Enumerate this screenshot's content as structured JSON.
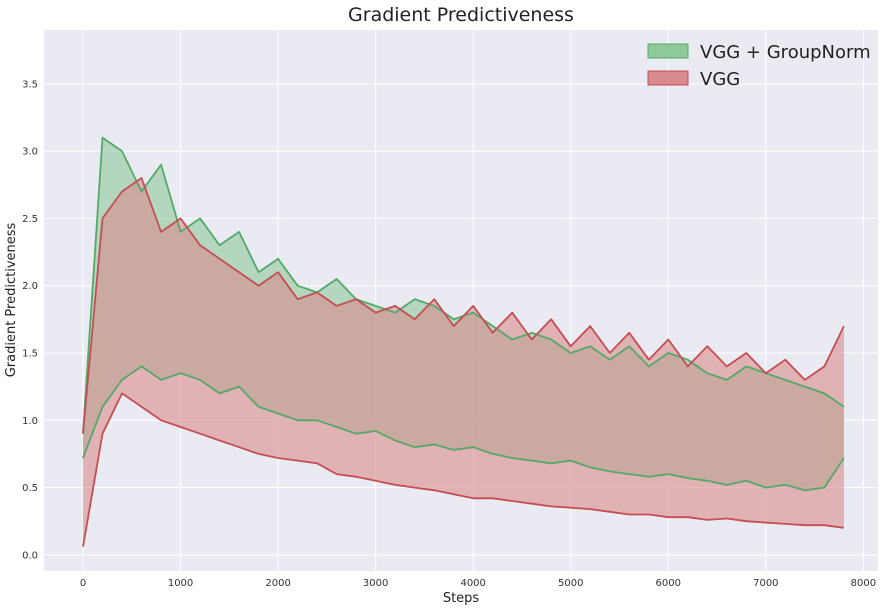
{
  "chart_data": {
    "type": "area",
    "title": "Gradient Predictiveness",
    "xlabel": "Steps",
    "ylabel": "Gradient Predictiveness",
    "xlim": [
      -400,
      8150
    ],
    "ylim": [
      -0.12,
      3.9
    ],
    "xticks": [
      0,
      1000,
      2000,
      3000,
      4000,
      5000,
      6000,
      7000,
      8000
    ],
    "yticks": [
      0.0,
      0.5,
      1.0,
      1.5,
      2.0,
      2.5,
      3.0,
      3.5
    ],
    "grid": true,
    "legend_position": "top-right",
    "x_start": 0,
    "x_step": 200,
    "series": [
      {
        "name": "VGG + GroupNorm",
        "color": "#55a868",
        "fill_color": "#8fc89b",
        "upper": [
          0.9,
          3.1,
          3.0,
          2.7,
          2.9,
          2.4,
          2.5,
          2.3,
          2.4,
          2.1,
          2.2,
          2.0,
          1.95,
          2.05,
          1.9,
          1.85,
          1.8,
          1.9,
          1.85,
          1.75,
          1.8,
          1.7,
          1.6,
          1.65,
          1.6,
          1.5,
          1.55,
          1.45,
          1.55,
          1.4,
          1.5,
          1.45,
          1.35,
          1.3,
          1.4,
          1.35,
          1.3,
          1.25,
          1.2,
          1.1
        ],
        "lower": [
          0.72,
          1.1,
          1.3,
          1.4,
          1.3,
          1.35,
          1.3,
          1.2,
          1.25,
          1.1,
          1.05,
          1.0,
          1.0,
          0.95,
          0.9,
          0.92,
          0.85,
          0.8,
          0.82,
          0.78,
          0.8,
          0.75,
          0.72,
          0.7,
          0.68,
          0.7,
          0.65,
          0.62,
          0.6,
          0.58,
          0.6,
          0.57,
          0.55,
          0.52,
          0.55,
          0.5,
          0.52,
          0.48,
          0.5,
          0.72
        ]
      },
      {
        "name": "VGG",
        "color": "#c44e52",
        "fill_color": "#d98a8c",
        "upper": [
          0.9,
          2.5,
          2.7,
          2.8,
          2.4,
          2.5,
          2.3,
          2.2,
          2.1,
          2.0,
          2.1,
          1.9,
          1.95,
          1.85,
          1.9,
          1.8,
          1.85,
          1.75,
          1.9,
          1.7,
          1.85,
          1.65,
          1.8,
          1.6,
          1.75,
          1.55,
          1.7,
          1.5,
          1.65,
          1.45,
          1.6,
          1.4,
          1.55,
          1.4,
          1.5,
          1.35,
          1.45,
          1.3,
          1.4,
          1.7
        ],
        "lower": [
          0.06,
          0.9,
          1.2,
          1.1,
          1.0,
          0.95,
          0.9,
          0.85,
          0.8,
          0.75,
          0.72,
          0.7,
          0.68,
          0.6,
          0.58,
          0.55,
          0.52,
          0.5,
          0.48,
          0.45,
          0.42,
          0.42,
          0.4,
          0.38,
          0.36,
          0.35,
          0.34,
          0.32,
          0.3,
          0.3,
          0.28,
          0.28,
          0.26,
          0.27,
          0.25,
          0.24,
          0.23,
          0.22,
          0.22,
          0.2
        ]
      }
    ]
  }
}
